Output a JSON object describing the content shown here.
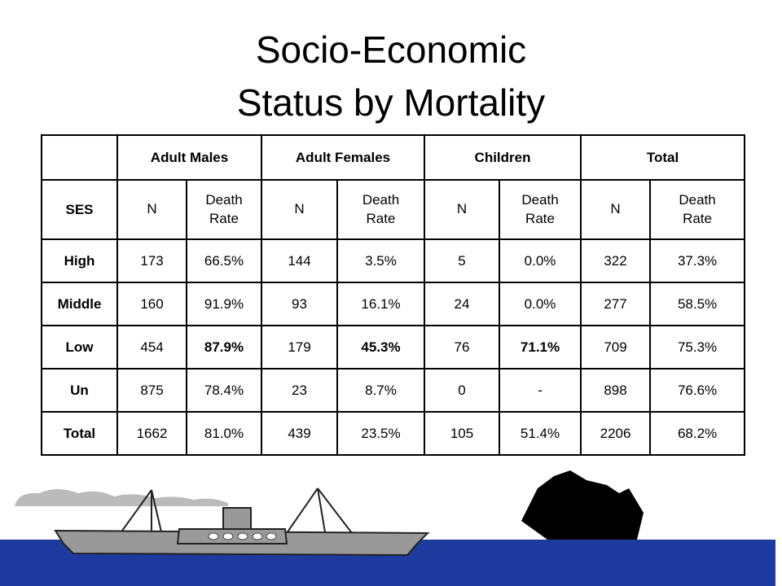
{
  "title": [
    "Socio-Economic",
    "Status by Mortality"
  ],
  "table": {
    "groups": [
      "Adult Males",
      "Adult Females",
      "Children",
      "Total"
    ],
    "subheader": [
      "SES",
      "N",
      "Death Rate",
      "N",
      "Death Rate",
      "N",
      "Death Rate",
      "N",
      "Death Rate"
    ],
    "rows": [
      [
        "High",
        "173",
        "66.5%",
        "144",
        "3.5%",
        "5",
        "0.0%",
        "322",
        "37.3%"
      ],
      [
        "Middle",
        "160",
        "91.9%",
        "93",
        "16.1%",
        "24",
        "0.0%",
        "277",
        "58.5%"
      ],
      [
        "Low",
        "454",
        "87.9%",
        "179",
        "45.3%",
        "76",
        "71.1%",
        "709",
        "75.3%"
      ],
      [
        "Un",
        "875",
        "78.4%",
        "23",
        "8.7%",
        "0",
        "-",
        "898",
        "76.6%"
      ],
      [
        "Total",
        "1662",
        "81.0%",
        "439",
        "23.5%",
        "105",
        "51.4%",
        "2206",
        "68.2%"
      ]
    ]
  }
}
